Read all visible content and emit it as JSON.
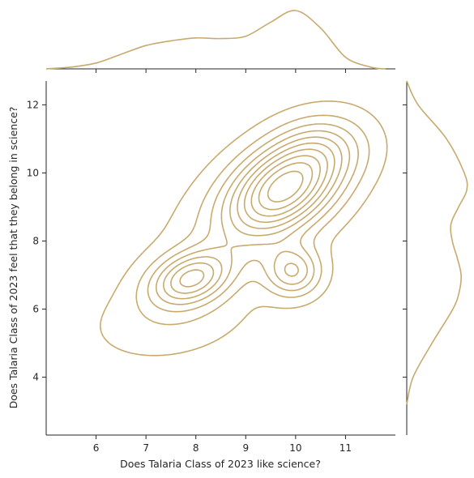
{
  "chart_data": {
    "type": "kde_joint",
    "xlabel": "Does Talaria Class of 2023 like science?",
    "ylabel": "Does Talaria Class of 2023 feel that they belong in science?",
    "xlim": [
      5.0,
      12.0
    ],
    "ylim": [
      2.3,
      12.7
    ],
    "xticks": [
      6,
      7,
      8,
      9,
      10,
      11
    ],
    "yticks": [
      4,
      6,
      8,
      10,
      12
    ],
    "color": "#c7aa6c",
    "grid": false,
    "joint_density_peaks": [
      {
        "x": 9.8,
        "y": 9.5,
        "level": "highest"
      },
      {
        "x": 7.9,
        "y": 6.9,
        "level": "secondary"
      },
      {
        "x": 9.9,
        "y": 7.2,
        "level": "minor"
      }
    ],
    "marginal_x": {
      "x": [
        5.0,
        5.5,
        6.0,
        6.5,
        7.0,
        7.5,
        8.0,
        8.5,
        9.0,
        9.5,
        10.0,
        10.5,
        11.0,
        11.5,
        11.8
      ],
      "density": [
        0.0,
        0.03,
        0.1,
        0.25,
        0.4,
        0.48,
        0.53,
        0.52,
        0.56,
        0.8,
        1.0,
        0.7,
        0.2,
        0.03,
        0.0
      ]
    },
    "marginal_y": {
      "y": [
        3.2,
        4.0,
        5.0,
        6.0,
        6.5,
        7.0,
        7.5,
        8.0,
        8.5,
        9.0,
        9.5,
        10.0,
        11.0,
        12.0,
        12.7
      ],
      "density": [
        0.0,
        0.1,
        0.4,
        0.73,
        0.83,
        0.86,
        0.8,
        0.72,
        0.7,
        0.82,
        0.95,
        0.91,
        0.63,
        0.18,
        0.0
      ]
    }
  }
}
